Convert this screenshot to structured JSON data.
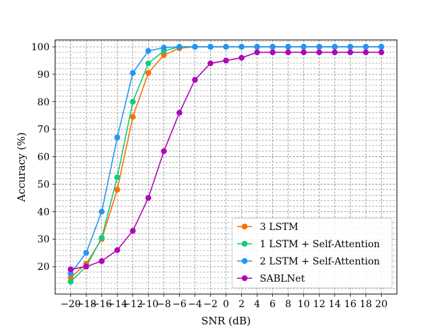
{
  "chart_data": {
    "type": "line",
    "title": "",
    "xlabel": "SNR (dB)",
    "ylabel": "Accuracy (%)",
    "x": [
      -20,
      -18,
      -16,
      -14,
      -12,
      -10,
      -8,
      -6,
      -4,
      -2,
      0,
      2,
      4,
      6,
      8,
      10,
      12,
      14,
      16,
      18,
      20
    ],
    "x_tick_labels": [
      "−20",
      "−18",
      "−16",
      "−14",
      "−12",
      "−10",
      "−8",
      "−6",
      "−4",
      "−2",
      "0",
      "2",
      "4",
      "6",
      "8",
      "10",
      "12",
      "14",
      "16",
      "18",
      "20"
    ],
    "xlim": [
      -22,
      22
    ],
    "y_ticks": [
      20,
      30,
      40,
      50,
      60,
      70,
      80,
      90,
      100
    ],
    "y_tick_labels": [
      "20",
      "30",
      "40",
      "50",
      "60",
      "70",
      "80",
      "90",
      "100"
    ],
    "ylim": [
      10,
      102.5
    ],
    "grid": true,
    "grid_minor_y": true,
    "legend_position": "lower-right",
    "series": [
      {
        "name": "3 LSTM",
        "color": "#ff6d00",
        "values": [
          16,
          21,
          30,
          48,
          74.5,
          90.5,
          97,
          99.5,
          100,
          100,
          100,
          100,
          100,
          100,
          100,
          100,
          100,
          100,
          100,
          100,
          100
        ]
      },
      {
        "name": "1 LSTM + Self-Attention",
        "color": "#10cc7a",
        "values": [
          14.5,
          20,
          30.5,
          52.5,
          80,
          94,
          98.5,
          100,
          100,
          100,
          100,
          100,
          100,
          100,
          100,
          100,
          100,
          100,
          100,
          100,
          100
        ]
      },
      {
        "name": "2 LSTM + Self-Attention",
        "color": "#2196f3",
        "values": [
          17.5,
          25,
          40,
          67,
          90.5,
          98.5,
          99.7,
          100,
          100,
          100,
          100,
          100,
          100,
          100,
          100,
          100,
          100,
          100,
          100,
          100,
          100
        ]
      },
      {
        "name": "SABLNet",
        "color": "#b005b8",
        "values": [
          19,
          20,
          22,
          26,
          33,
          45,
          62,
          76,
          88,
          94,
          95,
          96,
          98,
          98,
          98,
          98,
          98,
          98,
          98,
          98,
          98
        ]
      }
    ]
  }
}
